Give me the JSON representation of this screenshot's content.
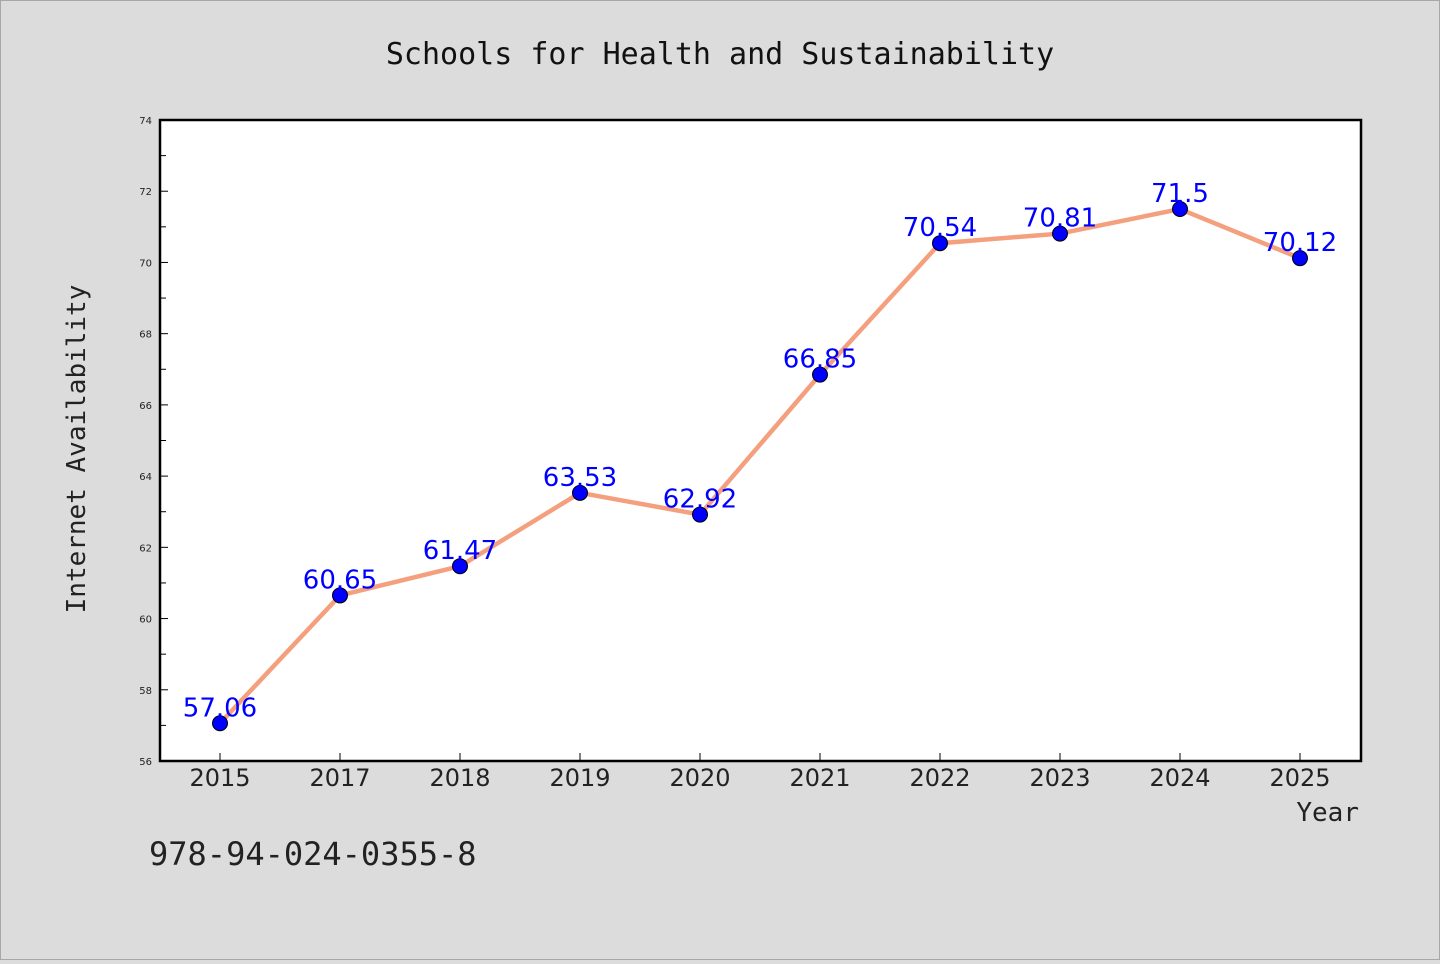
{
  "chart_data": {
    "type": "line",
    "title": "Schools for Health and Sustainability",
    "xlabel": "Year",
    "ylabel": "Internet Availability",
    "categories": [
      "2015",
      "2017",
      "2018",
      "2019",
      "2020",
      "2021",
      "2022",
      "2023",
      "2024",
      "2025"
    ],
    "series": [
      {
        "values": [
          57.06,
          60.65,
          61.47,
          63.53,
          62.92,
          66.85,
          70.54,
          70.81,
          71.5,
          70.12
        ],
        "data_labels": [
          "57.06",
          "60.65",
          "61.47",
          "63.53",
          "62.92",
          "66.85",
          "70.54",
          "70.81",
          "71.5",
          "70.12"
        ]
      }
    ],
    "ylim": [
      56,
      74
    ],
    "yticks": [
      "56",
      "58",
      "60",
      "62",
      "64",
      "66",
      "68",
      "70",
      "72",
      "74"
    ],
    "grid": false,
    "line_color": "#f4a07e",
    "marker_color": "#0000ff",
    "label_color": "#0000ff"
  },
  "footnote": "978-94-024-0355-8"
}
